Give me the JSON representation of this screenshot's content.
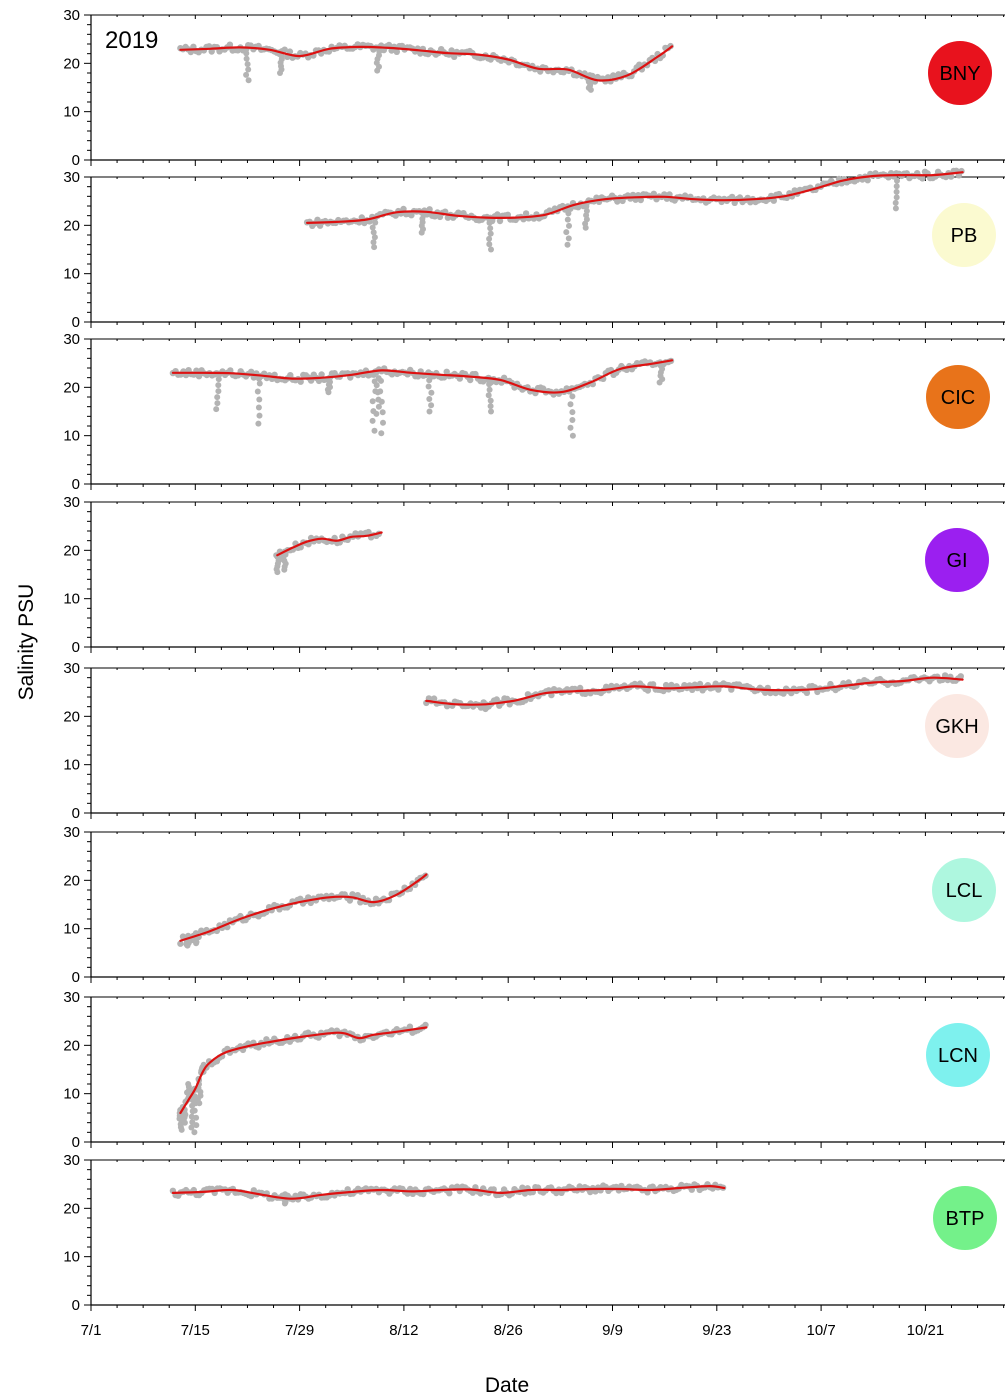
{
  "chart_data": {
    "type": "scatter",
    "year_label": "2019",
    "xlabel": "Date",
    "ylabel": "Salinity PSU",
    "x_ticks": [
      "7/1",
      "7/15",
      "7/29",
      "8/12",
      "8/26",
      "9/9",
      "9/23",
      "10/7",
      "10/21"
    ],
    "x_tick_days": [
      0,
      14,
      28,
      42,
      56,
      70,
      84,
      98,
      112
    ],
    "xlim": [
      0,
      123
    ],
    "ylim": [
      0,
      30
    ],
    "y_ticks": [
      0,
      10,
      20,
      30
    ],
    "observation_color": "#b3b3b3",
    "trend_color": "#dd1111",
    "series": [
      {
        "name": "BNY",
        "badge_color": "#e8121d",
        "x": [
          12,
          16,
          20,
          24,
          28,
          32,
          36,
          40,
          44,
          48,
          52,
          56,
          60,
          64,
          68,
          72,
          76,
          78
        ],
        "trend": [
          22.8,
          23,
          23.3,
          22.8,
          21.5,
          23,
          23.4,
          23.2,
          22.7,
          22.1,
          21.8,
          20.8,
          18.9,
          18.7,
          16.5,
          17.5,
          21.3,
          23.5
        ],
        "dips": [
          [
            21,
            16.5
          ],
          [
            25.5,
            18
          ],
          [
            38.5,
            18.5
          ],
          [
            67,
            14.5
          ]
        ]
      },
      {
        "name": "PB",
        "badge_color": "#fbfad0",
        "x": [
          29,
          33,
          37,
          41,
          45,
          49,
          53,
          57,
          61,
          65,
          69,
          73,
          77,
          81,
          85,
          89,
          93,
          97,
          101,
          105,
          109,
          113,
          117
        ],
        "trend": [
          20.5,
          20.7,
          21.2,
          22.7,
          22.8,
          22,
          21.6,
          21.6,
          22.2,
          24.3,
          25.4,
          25.8,
          25.9,
          25.4,
          25.2,
          25.4,
          26,
          27.5,
          29.3,
          30.2,
          30.4,
          30.4,
          31
        ],
        "dips": [
          [
            38,
            15.5
          ],
          [
            44.5,
            18.5
          ],
          [
            53.5,
            15
          ],
          [
            64,
            16
          ],
          [
            66.5,
            19.5
          ],
          [
            108,
            23.5
          ]
        ]
      },
      {
        "name": "CIC",
        "badge_color": "#e8731a",
        "x": [
          11,
          15,
          19,
          23,
          27,
          31,
          35,
          39,
          43,
          47,
          51,
          55,
          59,
          63,
          67,
          71,
          75,
          78
        ],
        "trend": [
          23,
          23,
          22.9,
          22.4,
          21.8,
          22,
          22.6,
          23.5,
          23,
          22.6,
          22.2,
          21.5,
          19.5,
          19,
          21,
          23.8,
          24.8,
          25.6
        ],
        "dips": [
          [
            17,
            15.5
          ],
          [
            22.5,
            12.5
          ],
          [
            32,
            19
          ],
          [
            38,
            11
          ],
          [
            38.5,
            14.5
          ],
          [
            39,
            10.5
          ],
          [
            45.5,
            15
          ],
          [
            53.5,
            15
          ],
          [
            64.5,
            10
          ],
          [
            76.5,
            21
          ]
        ]
      },
      {
        "name": "GI",
        "badge_color": "#9b1ff0",
        "x": [
          25,
          27,
          29,
          31,
          33,
          35,
          37,
          39
        ],
        "trend": [
          19,
          20.5,
          21.8,
          22.4,
          22,
          22.8,
          23,
          23.7
        ],
        "dips": [
          [
            25,
            15.5
          ],
          [
            26,
            16
          ]
        ]
      },
      {
        "name": "GKH",
        "badge_color": "#fbe8e2",
        "x": [
          45,
          49,
          53,
          57,
          61,
          65,
          69,
          73,
          77,
          81,
          85,
          89,
          93,
          97,
          101,
          105,
          109,
          113,
          117
        ],
        "trend": [
          23.2,
          22.5,
          22.5,
          23.3,
          24.8,
          25.2,
          25.5,
          26.2,
          25.8,
          26,
          26.2,
          25.6,
          25.4,
          25.6,
          26.3,
          27,
          27.3,
          28,
          27.6
        ],
        "dips": [
          [
            53,
            21.5
          ]
        ]
      },
      {
        "name": "LCL",
        "badge_color": "#aef7df",
        "x": [
          12,
          16,
          20,
          24,
          28,
          32,
          35,
          38,
          41,
          44,
          45
        ],
        "trend": [
          7.5,
          9.5,
          12,
          14,
          15.5,
          16.5,
          16.5,
          15.5,
          17,
          20,
          21.2
        ],
        "dips": [
          [
            13,
            6.5
          ],
          [
            14,
            7
          ]
        ]
      },
      {
        "name": "LCN",
        "badge_color": "#7ef1ee",
        "x": [
          12,
          13,
          14,
          15,
          16,
          18,
          21,
          24,
          28,
          32,
          34,
          36,
          38,
          41,
          45
        ],
        "trend": [
          6,
          8.5,
          11,
          14.5,
          16.5,
          18.5,
          19.8,
          20.7,
          21.7,
          22.5,
          22.5,
          21.5,
          22.2,
          22.8,
          23.7
        ],
        "dips": [
          [
            12,
            2.5
          ],
          [
            12.5,
            4
          ],
          [
            13,
            12
          ],
          [
            13.5,
            3
          ],
          [
            14,
            2
          ],
          [
            14.5,
            8
          ],
          [
            15,
            16
          ]
        ]
      },
      {
        "name": "BTP",
        "badge_color": "#74f18a",
        "x": [
          11,
          15,
          19,
          23,
          27,
          31,
          35,
          39,
          43,
          47,
          51,
          55,
          59,
          63,
          67,
          71,
          75,
          79,
          83,
          85
        ],
        "trend": [
          23.2,
          23.4,
          23.8,
          22.8,
          22,
          22.8,
          23.4,
          23.8,
          23.5,
          23.8,
          23.9,
          23.2,
          23.8,
          23.8,
          24,
          24,
          23.8,
          24.2,
          24.6,
          24.2
        ],
        "dips": [
          [
            26,
            21
          ]
        ]
      }
    ]
  }
}
